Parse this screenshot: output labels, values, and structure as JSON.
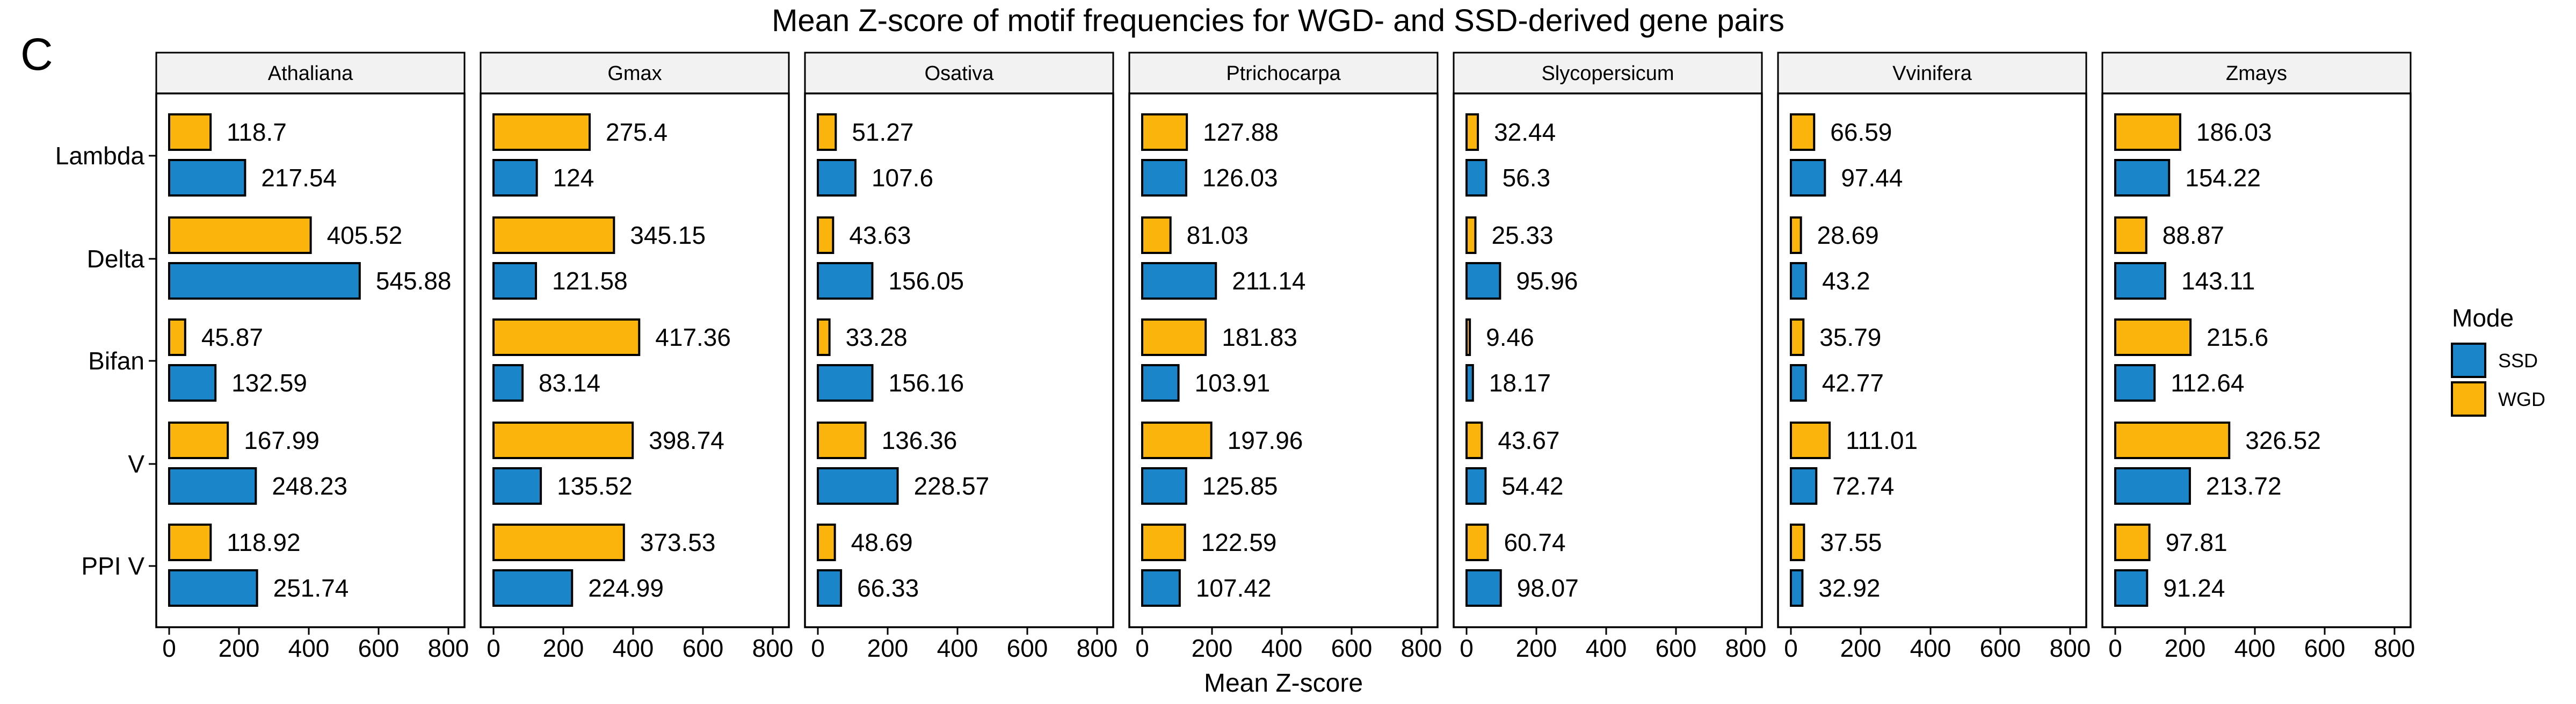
{
  "panel_letter": "C",
  "chart_data": {
    "type": "bar",
    "orientation": "horizontal",
    "title": "Mean Z-score of motif frequencies for WGD- and SSD-derived gene pairs",
    "xlabel": "Mean Z-score",
    "ylabel": "",
    "xlim": [
      0,
      800
    ],
    "xticks": [
      "0",
      "200",
      "400",
      "600",
      "800"
    ],
    "xtick_values": [
      0,
      200,
      400,
      600,
      800
    ],
    "grid": false,
    "categories": [
      "Lambda",
      "Delta",
      "Bifan",
      "V",
      "PPI V"
    ],
    "legend": {
      "title": "Mode",
      "position": "right",
      "entries": [
        {
          "label": "SSD",
          "color": "#1a85c8"
        },
        {
          "label": "WGD",
          "color": "#fbb40c"
        }
      ]
    },
    "facets": [
      {
        "name": "Athaliana",
        "WGD": [
          118.7,
          405.52,
          45.87,
          167.99,
          118.92
        ],
        "SSD": [
          217.54,
          545.88,
          132.59,
          248.23,
          251.74
        ],
        "WGD_labels": [
          "118.7",
          "405.52",
          "45.87",
          "167.99",
          "118.92"
        ],
        "SSD_labels": [
          "217.54",
          "545.88",
          "132.59",
          "248.23",
          "251.74"
        ]
      },
      {
        "name": "Gmax",
        "WGD": [
          275.4,
          345.15,
          417.36,
          398.74,
          373.53
        ],
        "SSD": [
          124,
          121.58,
          83.14,
          135.52,
          224.99
        ],
        "WGD_labels": [
          "275.4",
          "345.15",
          "417.36",
          "398.74",
          "373.53"
        ],
        "SSD_labels": [
          "124",
          "121.58",
          "83.14",
          "135.52",
          "224.99"
        ]
      },
      {
        "name": "Osativa",
        "WGD": [
          51.27,
          43.63,
          33.28,
          136.36,
          48.69
        ],
        "SSD": [
          107.6,
          156.05,
          156.16,
          228.57,
          66.33
        ],
        "WGD_labels": [
          "51.27",
          "43.63",
          "33.28",
          "136.36",
          "48.69"
        ],
        "SSD_labels": [
          "107.6",
          "156.05",
          "156.16",
          "228.57",
          "66.33"
        ]
      },
      {
        "name": "Ptrichocarpa",
        "WGD": [
          127.88,
          81.03,
          181.83,
          197.96,
          122.59
        ],
        "SSD": [
          126.03,
          211.14,
          103.91,
          125.85,
          107.42
        ],
        "WGD_labels": [
          "127.88",
          "81.03",
          "181.83",
          "197.96",
          "122.59"
        ],
        "SSD_labels": [
          "126.03",
          "211.14",
          "103.91",
          "125.85",
          "107.42"
        ]
      },
      {
        "name": "Slycopersicum",
        "WGD": [
          32.44,
          25.33,
          9.46,
          43.67,
          60.74
        ],
        "SSD": [
          56.3,
          95.96,
          18.17,
          54.42,
          98.07
        ],
        "WGD_labels": [
          "32.44",
          "25.33",
          "9.46",
          "43.67",
          "60.74"
        ],
        "SSD_labels": [
          "56.3",
          "95.96",
          "18.17",
          "54.42",
          "98.07"
        ]
      },
      {
        "name": "Vvinifera",
        "WGD": [
          66.59,
          28.69,
          35.79,
          111.01,
          37.55
        ],
        "SSD": [
          97.44,
          43.2,
          42.77,
          72.74,
          32.92
        ],
        "WGD_labels": [
          "66.59",
          "28.69",
          "35.79",
          "111.01",
          "37.55"
        ],
        "SSD_labels": [
          "97.44",
          "43.2",
          "42.77",
          "72.74",
          "32.92"
        ]
      },
      {
        "name": "Zmays",
        "WGD": [
          186.03,
          88.87,
          215.6,
          326.52,
          97.81
        ],
        "SSD": [
          154.22,
          143.11,
          112.64,
          213.72,
          91.24
        ],
        "WGD_labels": [
          "186.03",
          "88.87",
          "215.6",
          "326.52",
          "97.81"
        ],
        "SSD_labels": [
          "154.22",
          "143.11",
          "112.64",
          "213.72",
          "91.24"
        ]
      }
    ]
  }
}
